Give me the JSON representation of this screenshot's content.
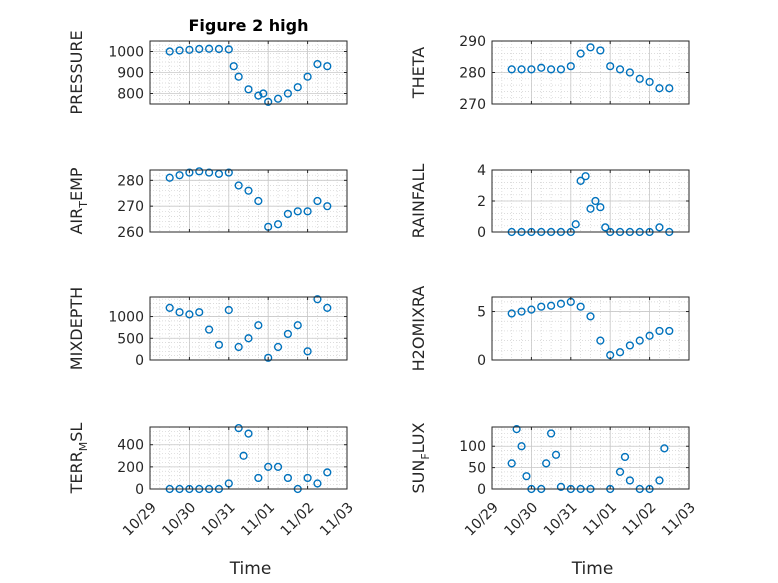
{
  "chart_data": [
    {
      "type": "scatter",
      "title": "Figure 2 high",
      "ylabel": "PRESSURE",
      "xlabel": "",
      "xlim": [
        "10/29",
        "11/03"
      ],
      "ylim": [
        750,
        1050
      ],
      "yticks": [
        800,
        900,
        1000
      ],
      "marker": "circle",
      "grid": true,
      "color": "#0072BD",
      "x": [
        "10/29 12:00",
        "10/29 18:00",
        "10/30 00:00",
        "10/30 06:00",
        "10/30 12:00",
        "10/30 18:00",
        "10/31 00:00",
        "10/31 03:00",
        "10/31 06:00",
        "10/31 12:00",
        "10/31 18:00",
        "10/31 21:00",
        "11/01 00:00",
        "11/01 06:00",
        "11/01 12:00",
        "11/01 18:00",
        "11/02 00:00",
        "11/02 06:00",
        "11/02 12:00"
      ],
      "y": [
        1000,
        1005,
        1008,
        1012,
        1013,
        1012,
        1010,
        930,
        880,
        820,
        790,
        800,
        760,
        775,
        800,
        830,
        880,
        940,
        930
      ]
    },
    {
      "type": "scatter",
      "title": "",
      "ylabel": "THETA",
      "xlabel": "",
      "xlim": [
        "10/29",
        "11/03"
      ],
      "ylim": [
        270,
        290
      ],
      "yticks": [
        270,
        280,
        290
      ],
      "marker": "circle",
      "grid": true,
      "color": "#0072BD",
      "x": [
        "10/29 12:00",
        "10/29 18:00",
        "10/30 00:00",
        "10/30 06:00",
        "10/30 12:00",
        "10/30 18:00",
        "10/31 00:00",
        "10/31 06:00",
        "10/31 12:00",
        "10/31 18:00",
        "11/01 00:00",
        "11/01 06:00",
        "11/01 12:00",
        "11/01 18:00",
        "11/02 00:00",
        "11/02 06:00",
        "11/02 12:00"
      ],
      "y": [
        281,
        281,
        281,
        281.5,
        281,
        281,
        282,
        286,
        288,
        287,
        282,
        281,
        280,
        278,
        277,
        275,
        275
      ]
    },
    {
      "type": "scatter",
      "title": "",
      "ylabel": "AIR_TEMP",
      "ylabel_display": [
        "AIR",
        "T",
        "EMP"
      ],
      "xlabel": "",
      "xlim": [
        "10/29",
        "11/03"
      ],
      "ylim": [
        260,
        284
      ],
      "yticks": [
        260,
        270,
        280
      ],
      "marker": "circle",
      "grid": true,
      "color": "#0072BD",
      "x": [
        "10/29 12:00",
        "10/29 18:00",
        "10/30 00:00",
        "10/30 06:00",
        "10/30 12:00",
        "10/30 18:00",
        "10/31 00:00",
        "10/31 06:00",
        "10/31 12:00",
        "10/31 18:00",
        "11/01 00:00",
        "11/01 06:00",
        "11/01 12:00",
        "11/01 18:00",
        "11/02 00:00",
        "11/02 06:00",
        "11/02 12:00"
      ],
      "y": [
        281,
        282,
        283,
        283.5,
        283,
        282.5,
        283,
        278,
        276,
        272,
        262,
        263,
        267,
        268,
        268,
        272,
        270
      ]
    },
    {
      "type": "scatter",
      "title": "",
      "ylabel": "RAINFALL",
      "xlabel": "",
      "xlim": [
        "10/29",
        "11/03"
      ],
      "ylim": [
        0,
        4
      ],
      "yticks": [
        0,
        2,
        4
      ],
      "marker": "circle",
      "grid": true,
      "color": "#0072BD",
      "x": [
        "10/29 12:00",
        "10/29 18:00",
        "10/30 00:00",
        "10/30 06:00",
        "10/30 12:00",
        "10/30 18:00",
        "10/31 00:00",
        "10/31 03:00",
        "10/31 06:00",
        "10/31 09:00",
        "10/31 12:00",
        "10/31 15:00",
        "10/31 18:00",
        "10/31 21:00",
        "11/01 00:00",
        "11/01 06:00",
        "11/01 12:00",
        "11/01 18:00",
        "11/02 00:00",
        "11/02 06:00",
        "11/02 12:00"
      ],
      "y": [
        0,
        0,
        0,
        0,
        0,
        0,
        0,
        0.5,
        3.3,
        3.6,
        1.5,
        2,
        1.6,
        0.3,
        0,
        0,
        0,
        0,
        0,
        0.3,
        0
      ]
    },
    {
      "type": "scatter",
      "title": "",
      "ylabel": "MIXDEPTH",
      "xlabel": "",
      "xlim": [
        "10/29",
        "11/03"
      ],
      "ylim": [
        0,
        1450
      ],
      "yticks": [
        0,
        500,
        1000
      ],
      "marker": "circle",
      "grid": true,
      "color": "#0072BD",
      "x": [
        "10/29 12:00",
        "10/29 18:00",
        "10/30 00:00",
        "10/30 06:00",
        "10/30 12:00",
        "10/30 18:00",
        "10/31 00:00",
        "10/31 06:00",
        "10/31 12:00",
        "10/31 18:00",
        "11/01 00:00",
        "11/01 06:00",
        "11/01 12:00",
        "11/01 18:00",
        "11/02 00:00",
        "11/02 06:00",
        "11/02 12:00"
      ],
      "y": [
        1200,
        1100,
        1050,
        1100,
        700,
        350,
        1150,
        300,
        500,
        800,
        50,
        300,
        600,
        800,
        200,
        1400,
        1200
      ]
    },
    {
      "type": "scatter",
      "title": "",
      "ylabel": "H2OMIXRA",
      "xlabel": "",
      "xlim": [
        "10/29",
        "11/03"
      ],
      "ylim": [
        0,
        6.5
      ],
      "yticks": [
        0,
        5
      ],
      "marker": "circle",
      "grid": true,
      "color": "#0072BD",
      "x": [
        "10/29 12:00",
        "10/29 18:00",
        "10/30 00:00",
        "10/30 06:00",
        "10/30 12:00",
        "10/30 18:00",
        "10/31 00:00",
        "10/31 06:00",
        "10/31 12:00",
        "10/31 18:00",
        "11/01 00:00",
        "11/01 06:00",
        "11/01 12:00",
        "11/01 18:00",
        "11/02 00:00",
        "11/02 06:00",
        "11/02 12:00"
      ],
      "y": [
        4.8,
        5,
        5.2,
        5.5,
        5.6,
        5.8,
        6,
        5.5,
        4.5,
        2,
        0.5,
        0.8,
        1.5,
        2,
        2.5,
        3,
        3
      ]
    },
    {
      "type": "scatter",
      "title": "",
      "ylabel": "TERR_MSL",
      "ylabel_display": [
        "TERR",
        "M",
        "SL"
      ],
      "xlabel": "Time",
      "xlim": [
        "10/29",
        "11/03"
      ],
      "xticks": [
        "10/29",
        "10/30",
        "10/31",
        "11/01",
        "11/02",
        "11/03"
      ],
      "ylim": [
        0,
        560
      ],
      "yticks": [
        0,
        200,
        400
      ],
      "marker": "circle",
      "grid": true,
      "color": "#0072BD",
      "x": [
        "10/29 12:00",
        "10/29 18:00",
        "10/30 00:00",
        "10/30 06:00",
        "10/30 12:00",
        "10/30 18:00",
        "10/31 00:00",
        "10/31 06:00",
        "10/31 09:00",
        "10/31 12:00",
        "10/31 18:00",
        "11/01 00:00",
        "11/01 06:00",
        "11/01 12:00",
        "11/01 18:00",
        "11/02 00:00",
        "11/02 06:00",
        "11/02 12:00"
      ],
      "y": [
        0,
        0,
        0,
        0,
        0,
        0,
        50,
        550,
        300,
        500,
        100,
        200,
        200,
        100,
        0,
        100,
        50,
        150
      ]
    },
    {
      "type": "scatter",
      "title": "",
      "ylabel": "SUN_FLUX",
      "ylabel_display": [
        "SUN",
        "F",
        "LUX"
      ],
      "xlabel": "Time",
      "xlim": [
        "10/29",
        "11/03"
      ],
      "xticks": [
        "10/29",
        "10/30",
        "10/31",
        "11/01",
        "11/02",
        "11/03"
      ],
      "ylim": [
        0,
        145
      ],
      "yticks": [
        0,
        50,
        100
      ],
      "marker": "circle",
      "grid": true,
      "color": "#0072BD",
      "x": [
        "10/29 12:00",
        "10/29 15:00",
        "10/29 18:00",
        "10/29 21:00",
        "10/30 00:00",
        "10/30 06:00",
        "10/30 09:00",
        "10/30 12:00",
        "10/30 15:00",
        "10/30 18:00",
        "10/31 00:00",
        "10/31 06:00",
        "10/31 12:00",
        "11/01 00:00",
        "11/01 06:00",
        "11/01 09:00",
        "11/01 12:00",
        "11/01 18:00",
        "11/02 00:00",
        "11/02 06:00",
        "11/02 09:00"
      ],
      "y": [
        60,
        140,
        100,
        30,
        0,
        0,
        60,
        130,
        80,
        5,
        0,
        0,
        0,
        0,
        40,
        75,
        20,
        0,
        0,
        20,
        95
      ]
    }
  ]
}
